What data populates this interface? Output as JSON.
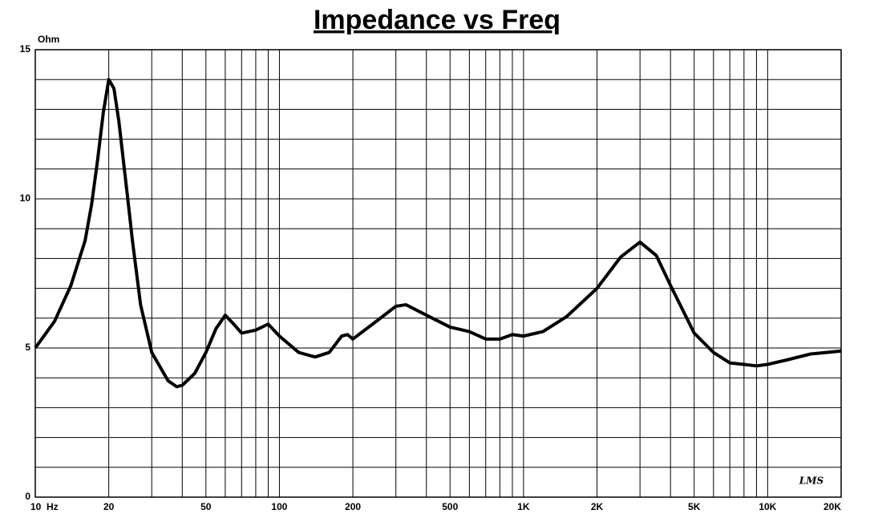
{
  "chart_data": {
    "type": "line",
    "title": "Impedance vs Freq",
    "y_label": "Ohm",
    "watermark": "LMS",
    "x_log": true,
    "grid": true,
    "x": [
      10,
      12,
      14,
      16,
      17,
      18,
      19,
      20,
      21,
      22,
      24,
      25,
      27,
      30,
      35,
      38,
      40,
      45,
      50,
      55,
      60,
      65,
      70,
      80,
      90,
      100,
      120,
      140,
      160,
      180,
      190,
      200,
      250,
      300,
      330,
      400,
      500,
      600,
      700,
      800,
      900,
      1000,
      1200,
      1500,
      2000,
      2500,
      3000,
      3500,
      4000,
      5000,
      6000,
      7000,
      8000,
      9000,
      10000,
      12000,
      15000,
      20000
    ],
    "series": [
      {
        "name": "Impedance",
        "color": "#000000",
        "values": [
          5.0,
          5.9,
          7.1,
          8.6,
          9.8,
          11.3,
          12.9,
          14.0,
          13.7,
          12.6,
          9.9,
          8.6,
          6.45,
          4.85,
          3.9,
          3.7,
          3.75,
          4.15,
          4.85,
          5.65,
          6.1,
          5.8,
          5.5,
          5.6,
          5.8,
          5.4,
          4.85,
          4.7,
          4.85,
          5.4,
          5.45,
          5.3,
          5.9,
          6.4,
          6.45,
          6.1,
          5.7,
          5.55,
          5.3,
          5.3,
          5.45,
          5.4,
          5.55,
          6.05,
          7.0,
          8.05,
          8.55,
          8.1,
          7.1,
          5.5,
          4.85,
          4.5,
          4.45,
          4.4,
          4.45,
          4.6,
          4.8,
          4.9
        ]
      }
    ],
    "xlim": [
      10,
      20000
    ],
    "ylim": [
      0,
      15
    ],
    "xticks": [
      {
        "value": 10,
        "label": "10  Hz"
      },
      20,
      50,
      100,
      200,
      500,
      {
        "value": 1000,
        "label": "1K"
      },
      {
        "value": 2000,
        "label": "2K"
      },
      {
        "value": 5000,
        "label": "5K"
      },
      {
        "value": 10000,
        "label": "10K"
      },
      {
        "value": 20000,
        "label": "20K"
      }
    ],
    "yticks": [
      0,
      5,
      10,
      15
    ],
    "x_minor_grid": [
      30,
      40,
      60,
      70,
      80,
      90,
      300,
      400,
      600,
      700,
      800,
      900,
      3000,
      4000,
      6000,
      7000,
      8000,
      9000
    ],
    "y_minor_grid": [
      1,
      2,
      3,
      4,
      6,
      7,
      8,
      9,
      11,
      12,
      13,
      14
    ]
  }
}
